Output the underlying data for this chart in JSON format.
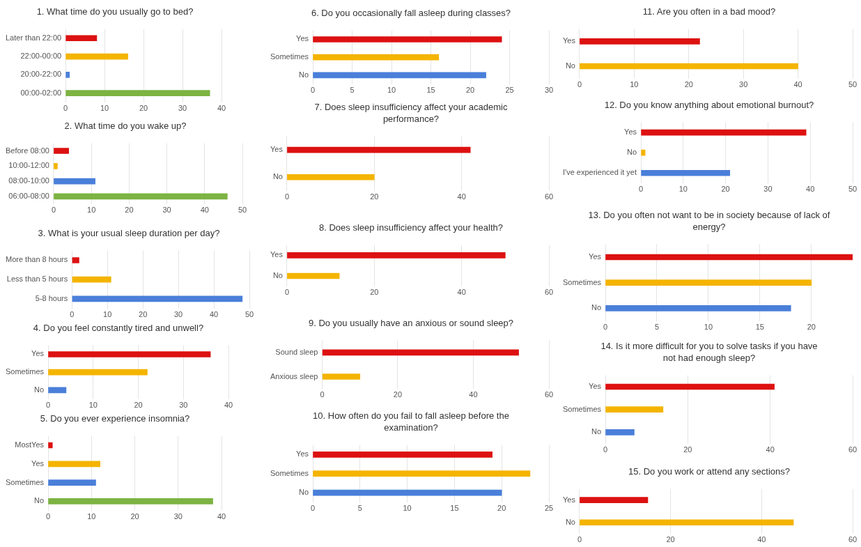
{
  "chart_data": [
    {
      "type": "bar",
      "orientation": "horizontal",
      "title": "1. What time do you usually go to bed?",
      "categories": [
        "Later than 22:00",
        "22:00-00:00",
        "20:00-22:00",
        "00:00-02:00"
      ],
      "values": [
        8,
        16,
        1,
        37
      ],
      "colors": [
        "#dd1111",
        "#f4b400",
        "#4a7fd9",
        "#7cb342"
      ],
      "xlim": [
        0,
        40
      ],
      "xticks": [
        0,
        10,
        20,
        30,
        40
      ],
      "grid": "x"
    },
    {
      "type": "bar",
      "orientation": "horizontal",
      "title": "2. What time do you wake up?",
      "categories": [
        "Before 08:00",
        "10:00-12:00",
        "08:00-10:00",
        "06:00-08:00"
      ],
      "values": [
        4,
        1,
        11,
        46
      ],
      "colors": [
        "#dd1111",
        "#f4b400",
        "#4a7fd9",
        "#7cb342"
      ],
      "xlim": [
        0,
        50
      ],
      "xticks": [
        0,
        10,
        20,
        30,
        40,
        50
      ],
      "grid": "x"
    },
    {
      "type": "bar",
      "orientation": "horizontal",
      "title": "3. What is your usual sleep duration per day?",
      "categories": [
        "More than 8 hours",
        "Less than 5 hours",
        "5-8 hours"
      ],
      "values": [
        2,
        11,
        48
      ],
      "colors": [
        "#dd1111",
        "#f4b400",
        "#4a7fd9"
      ],
      "xlim": [
        0,
        50
      ],
      "xticks": [
        0,
        10,
        20,
        30,
        40,
        50
      ],
      "grid": "x"
    },
    {
      "type": "bar",
      "orientation": "horizontal",
      "title": "4. Do you feel constantly tired and unwell?",
      "categories": [
        "Yes",
        "Sometimes",
        "No"
      ],
      "values": [
        36,
        22,
        4
      ],
      "colors": [
        "#dd1111",
        "#f4b400",
        "#4a7fd9"
      ],
      "xlim": [
        0,
        40
      ],
      "xticks": [
        0,
        10,
        20,
        30,
        40
      ],
      "grid": "x"
    },
    {
      "type": "bar",
      "orientation": "horizontal",
      "title": "5. Do you ever experience insomnia?",
      "categories": [
        "MostYes",
        "Yes",
        "Sometimes",
        "No"
      ],
      "values": [
        1,
        12,
        11,
        38
      ],
      "colors": [
        "#dd1111",
        "#f4b400",
        "#4a7fd9",
        "#7cb342"
      ],
      "xlim": [
        0,
        40
      ],
      "xticks": [
        0,
        10,
        20,
        30,
        40
      ],
      "grid": "x"
    },
    {
      "type": "bar",
      "orientation": "horizontal",
      "title": "6. Do you occasionally fall asleep during classes?",
      "categories": [
        "Yes",
        "Sometimes",
        "No"
      ],
      "values": [
        24,
        16,
        22
      ],
      "colors": [
        "#dd1111",
        "#f4b400",
        "#4a7fd9"
      ],
      "xlim": [
        0,
        30
      ],
      "xticks": [
        0,
        5,
        10,
        15,
        20,
        25,
        30
      ],
      "grid": "x"
    },
    {
      "type": "bar",
      "orientation": "horizontal",
      "title": "7. Does sleep insufficiency affect your academic performance?",
      "categories": [
        "Yes",
        "No"
      ],
      "values": [
        42,
        20
      ],
      "colors": [
        "#dd1111",
        "#f4b400"
      ],
      "xlim": [
        0,
        60
      ],
      "xticks": [
        0,
        20,
        40,
        60
      ],
      "grid": "x"
    },
    {
      "type": "bar",
      "orientation": "horizontal",
      "title": "8. Does sleep insufficiency affect your health?",
      "categories": [
        "Yes",
        "No"
      ],
      "values": [
        50,
        12
      ],
      "colors": [
        "#dd1111",
        "#f4b400"
      ],
      "xlim": [
        0,
        60
      ],
      "xticks": [
        0,
        20,
        40,
        60
      ],
      "grid": "x"
    },
    {
      "type": "bar",
      "orientation": "horizontal",
      "title": "9. Do you usually have an anxious or sound sleep?",
      "categories": [
        "Sound sleep",
        "Anxious sleep"
      ],
      "values": [
        52,
        10
      ],
      "colors": [
        "#dd1111",
        "#f4b400"
      ],
      "xlim": [
        0,
        60
      ],
      "xticks": [
        0,
        20,
        40,
        60
      ],
      "grid": "x"
    },
    {
      "type": "bar",
      "orientation": "horizontal",
      "title": "10. How often do you fail to fall asleep before the examination?",
      "categories": [
        "Yes",
        "Sometimes",
        "No"
      ],
      "values": [
        19,
        23,
        20
      ],
      "colors": [
        "#dd1111",
        "#f4b400",
        "#4a7fd9"
      ],
      "xlim": [
        0,
        25
      ],
      "xticks": [
        0,
        5,
        10,
        15,
        20,
        25
      ],
      "grid": "x"
    },
    {
      "type": "bar",
      "orientation": "horizontal",
      "title": "11. Are you often in a bad mood?",
      "categories": [
        "Yes",
        "No"
      ],
      "values": [
        22,
        40
      ],
      "colors": [
        "#dd1111",
        "#f4b400"
      ],
      "xlim": [
        0,
        50
      ],
      "xticks": [
        0,
        10,
        20,
        30,
        40,
        50
      ],
      "grid": "x"
    },
    {
      "type": "bar",
      "orientation": "horizontal",
      "title": "12. Do you know anything about emotional burnout?",
      "categories": [
        "Yes",
        "No",
        "I've experienced it yet"
      ],
      "values": [
        39,
        1,
        21
      ],
      "colors": [
        "#dd1111",
        "#f4b400",
        "#4a7fd9"
      ],
      "xlim": [
        0,
        50
      ],
      "xticks": [
        0,
        10,
        20,
        30,
        40,
        50
      ],
      "grid": "x"
    },
    {
      "type": "bar",
      "orientation": "horizontal",
      "title": "13. Do you often not want to be in society because of lack of energy?",
      "categories": [
        "Yes",
        "Sometimes",
        "No"
      ],
      "values": [
        24,
        20,
        18
      ],
      "colors": [
        "#dd1111",
        "#f4b400",
        "#4a7fd9"
      ],
      "xlim": [
        0,
        24
      ],
      "xticks": [
        0,
        5,
        10,
        15,
        20
      ],
      "grid": "x"
    },
    {
      "type": "bar",
      "orientation": "horizontal",
      "title": "14. Is it more difficult for you to solve tasks if you have not had enough sleep?",
      "categories": [
        "Yes",
        "Sometimes",
        "No"
      ],
      "values": [
        41,
        14,
        7
      ],
      "colors": [
        "#dd1111",
        "#f4b400",
        "#4a7fd9"
      ],
      "xlim": [
        0,
        60
      ],
      "xticks": [
        0,
        20,
        40,
        60
      ],
      "grid": "x"
    },
    {
      "type": "bar",
      "orientation": "horizontal",
      "title": "15. Do you work or attend any sections?",
      "categories": [
        "Yes",
        "No"
      ],
      "values": [
        15,
        47
      ],
      "colors": [
        "#dd1111",
        "#f4b400"
      ],
      "xlim": [
        0,
        60
      ],
      "xticks": [
        0,
        20,
        40,
        60
      ],
      "grid": "x"
    }
  ]
}
